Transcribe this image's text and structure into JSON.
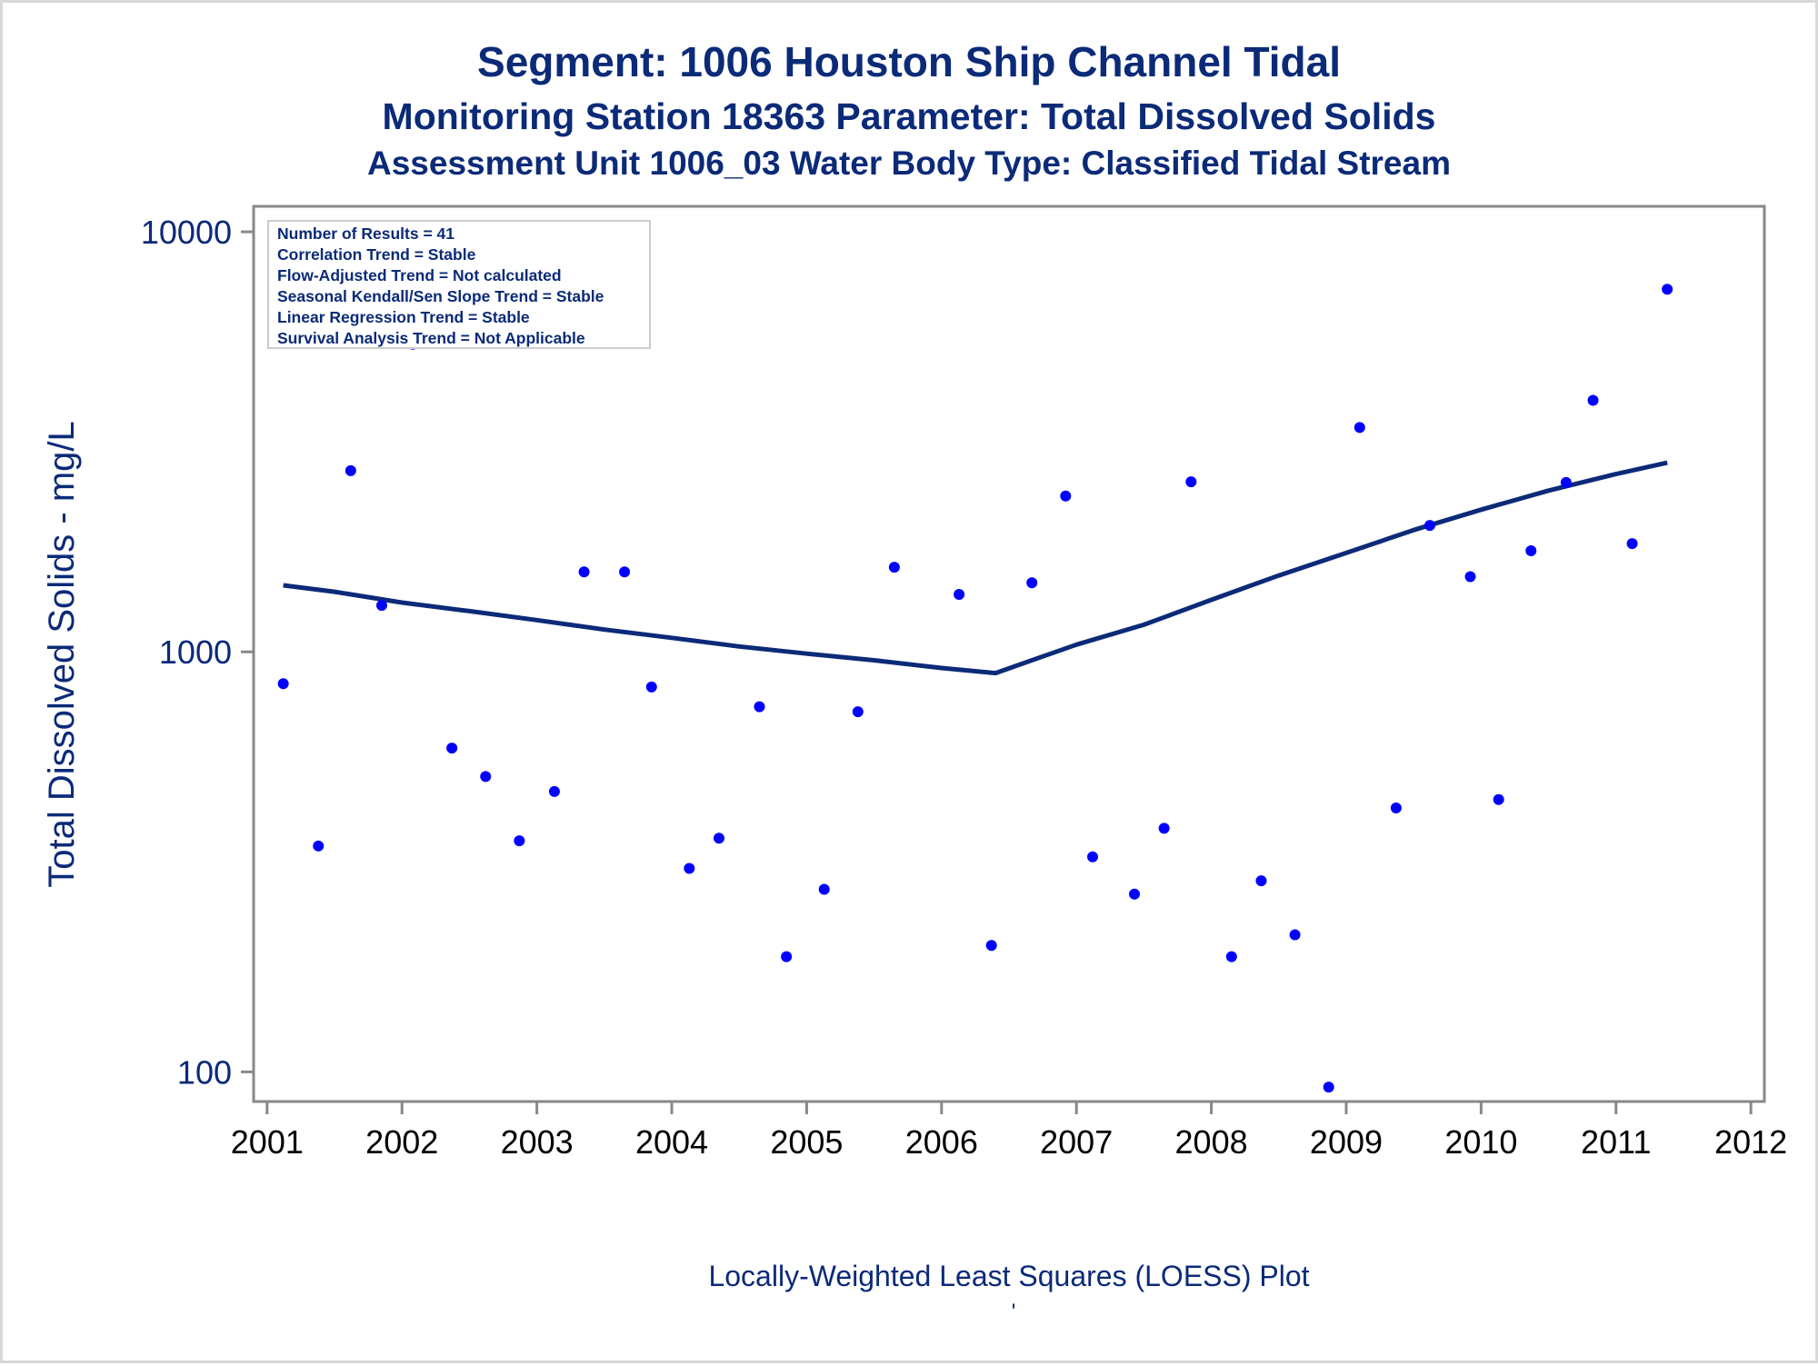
{
  "titles": {
    "line1": "Segment: 1006  Houston Ship Channel Tidal",
    "line2": "Monitoring Station 18363 Parameter: Total Dissolved Solids",
    "line3": "Assessment Unit 1006_03   Water Body Type: Classified Tidal Stream"
  },
  "stats_box": [
    "Number of Results = 41",
    "Correlation Trend = Stable",
    "Flow-Adjusted Trend = Not calculated",
    "Seasonal Kendall/Sen Slope Trend = Stable",
    "Linear Regression Trend = Stable",
    "Survival Analysis Trend = Not Applicable"
  ],
  "footer_mark": "'",
  "chart_data": {
    "type": "scatter",
    "title": "Segment: 1006  Houston Ship Channel Tidal",
    "ylabel": "Total Dissolved Solids - mg/L",
    "xlabel": "Locally-Weighted Least Squares (LOESS) Plot",
    "yscale": "log",
    "ylim": [
      85,
      11500
    ],
    "xlim": [
      2000.9,
      2012.1
    ],
    "yticks": [
      100,
      1000,
      10000
    ],
    "ytick_labels": [
      "100",
      "1000",
      "10000"
    ],
    "xticks": [
      2001,
      2002,
      2003,
      2004,
      2005,
      2006,
      2007,
      2008,
      2009,
      2010,
      2011,
      2012
    ],
    "xtick_labels": [
      "2001",
      "2002",
      "2003",
      "2004",
      "2005",
      "2006",
      "2007",
      "2008",
      "2009",
      "2010",
      "2011",
      "2012"
    ],
    "grid": false,
    "colors": {
      "points": "#0000ff",
      "line": "#0b2a78",
      "text": "#0b2a78",
      "axis": "#888888"
    },
    "series": [
      {
        "kind": "scatter",
        "x": [
          2001.12,
          2001.38,
          2001.62,
          2001.85,
          2002.08,
          2002.37,
          2002.62,
          2002.87,
          2003.13,
          2003.35,
          2003.65,
          2003.85,
          2004.13,
          2004.35,
          2004.65,
          2004.85,
          2005.13,
          2005.38,
          2005.65,
          2006.13,
          2006.37,
          2006.67,
          2006.92,
          2007.12,
          2007.43,
          2007.65,
          2007.85,
          2008.15,
          2008.37,
          2008.62,
          2008.87,
          2009.1,
          2009.37,
          2009.62,
          2009.92,
          2010.13,
          2010.37,
          2010.63,
          2010.83,
          2011.12,
          2011.38
        ],
        "y": [
          840,
          345,
          2700,
          1290,
          5400,
          590,
          505,
          355,
          465,
          1550,
          1550,
          825,
          305,
          360,
          740,
          188,
          272,
          720,
          1590,
          1370,
          200,
          1460,
          2350,
          325,
          265,
          380,
          2540,
          188,
          285,
          212,
          92,
          3420,
          425,
          2000,
          1510,
          445,
          1740,
          2530,
          3970,
          1810,
          7300
        ]
      },
      {
        "kind": "line",
        "x": [
          2001.12,
          2001.5,
          2002.0,
          2002.5,
          2003.0,
          2003.5,
          2004.0,
          2004.5,
          2005.0,
          2005.5,
          2006.0,
          2006.4,
          2006.75,
          2007.0,
          2007.5,
          2008.0,
          2008.5,
          2009.0,
          2009.5,
          2010.0,
          2010.5,
          2011.0,
          2011.38
        ],
        "y": [
          1440,
          1390,
          1310,
          1250,
          1190,
          1130,
          1080,
          1030,
          990,
          955,
          915,
          890,
          975,
          1040,
          1160,
          1330,
          1520,
          1720,
          1950,
          2180,
          2420,
          2650,
          2820
        ]
      }
    ]
  }
}
